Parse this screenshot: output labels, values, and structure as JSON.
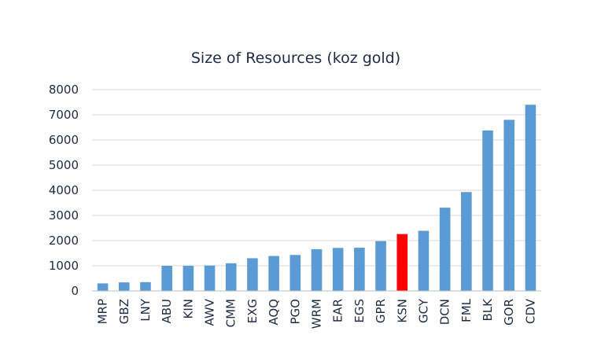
{
  "chart_data": {
    "type": "bar",
    "title": "Size of Resources (koz gold)",
    "xlabel": "",
    "ylabel": "",
    "ylim": [
      0,
      8000
    ],
    "yticks": [
      0,
      1000,
      2000,
      3000,
      4000,
      5000,
      6000,
      7000,
      8000
    ],
    "grid": true,
    "legend": "none",
    "categories": [
      "MRP",
      "GBZ",
      "LNY",
      "ABU",
      "KIN",
      "AWV",
      "CMM",
      "EXG",
      "AQQ",
      "PGO",
      "WRM",
      "EAR",
      "EGS",
      "GPR",
      "KSN",
      "GCY",
      "DCN",
      "FML",
      "BLK",
      "GOR",
      "CDV"
    ],
    "values": [
      300,
      340,
      350,
      1000,
      1000,
      1010,
      1100,
      1300,
      1390,
      1430,
      1660,
      1710,
      1720,
      1980,
      2260,
      2390,
      3310,
      3930,
      6380,
      6800,
      7400
    ],
    "bar_color": "#5b9bd5",
    "highlight": {
      "category": "KSN",
      "color": "#ff0000"
    }
  }
}
